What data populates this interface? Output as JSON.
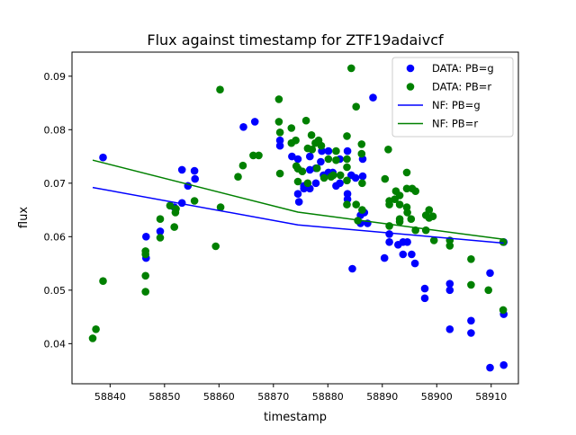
{
  "chart_data": {
    "type": "scatter",
    "title": "Flux against timestamp for ZTF19adaivcf",
    "xlabel": "timestamp",
    "ylabel": "flux",
    "xlim": [
      58833,
      58915
    ],
    "ylim": [
      0.0325,
      0.0945
    ],
    "xticks": [
      58840,
      58850,
      58860,
      58870,
      58880,
      58890,
      58900,
      58910
    ],
    "yticks": [
      0.04,
      0.05,
      0.06,
      0.07,
      0.08,
      0.09
    ],
    "grid": false,
    "legend_position": "top-right",
    "colors": {
      "data_g": "#0000ff",
      "data_r": "#008000",
      "nf_g": "#0000ff",
      "nf_r": "#008000"
    },
    "series": [
      {
        "name": "DATA: PB=g",
        "kind": "scatter",
        "color": "#0000ff",
        "points": [
          [
            58838.7,
            0.0748
          ],
          [
            58846.6,
            0.06
          ],
          [
            58846.6,
            0.056
          ],
          [
            58849.2,
            0.061
          ],
          [
            58851.8,
            0.0655
          ],
          [
            58853.2,
            0.0663
          ],
          [
            58853.2,
            0.0725
          ],
          [
            58854.3,
            0.0695
          ],
          [
            58855.5,
            0.0723
          ],
          [
            58855.6,
            0.0708
          ],
          [
            58864.5,
            0.0805
          ],
          [
            58866.6,
            0.0815
          ],
          [
            58871.2,
            0.078
          ],
          [
            58871.2,
            0.077
          ],
          [
            58873.4,
            0.075
          ],
          [
            58874.5,
            0.0745
          ],
          [
            58874.5,
            0.068
          ],
          [
            58874.7,
            0.0665
          ],
          [
            58875.6,
            0.0695
          ],
          [
            58875.6,
            0.069
          ],
          [
            58876.7,
            0.0725
          ],
          [
            58876.7,
            0.075
          ],
          [
            58876.7,
            0.069
          ],
          [
            58877.8,
            0.07
          ],
          [
            58877.8,
            0.0728
          ],
          [
            58878.7,
            0.074
          ],
          [
            58878.9,
            0.076
          ],
          [
            58879.2,
            0.0715
          ],
          [
            58880.1,
            0.072
          ],
          [
            58880.1,
            0.076
          ],
          [
            58880.9,
            0.072
          ],
          [
            58881.5,
            0.0695
          ],
          [
            58882.2,
            0.07
          ],
          [
            58882.2,
            0.0745
          ],
          [
            58883.6,
            0.068
          ],
          [
            58883.6,
            0.067
          ],
          [
            58883.6,
            0.076
          ],
          [
            58884.3,
            0.0715
          ],
          [
            58884.5,
            0.054
          ],
          [
            58885.1,
            0.071
          ],
          [
            58886.0,
            0.064
          ],
          [
            58886.0,
            0.0625
          ],
          [
            58886.4,
            0.0745
          ],
          [
            58886.4,
            0.0713
          ],
          [
            58886.7,
            0.0645
          ],
          [
            58887.3,
            0.0625
          ],
          [
            58888.3,
            0.086
          ],
          [
            58890.4,
            0.056
          ],
          [
            58891.3,
            0.059
          ],
          [
            58891.3,
            0.0605
          ],
          [
            58892.9,
            0.0585
          ],
          [
            58893.8,
            0.059
          ],
          [
            58893.8,
            0.0567
          ],
          [
            58894.6,
            0.059
          ],
          [
            58895.4,
            0.0567
          ],
          [
            58896.0,
            0.055
          ],
          [
            58897.8,
            0.0503
          ],
          [
            58897.8,
            0.0485
          ],
          [
            58902.4,
            0.0427
          ],
          [
            58902.4,
            0.05
          ],
          [
            58902.4,
            0.0512
          ],
          [
            58906.3,
            0.0443
          ],
          [
            58906.3,
            0.042
          ],
          [
            58909.8,
            0.0532
          ],
          [
            58909.8,
            0.0355
          ],
          [
            58912.3,
            0.059
          ],
          [
            58912.3,
            0.0455
          ],
          [
            58912.3,
            0.036
          ]
        ]
      },
      {
        "name": "DATA: PB=r",
        "kind": "scatter",
        "color": "#008000",
        "points": [
          [
            58836.8,
            0.041
          ],
          [
            58837.4,
            0.0427
          ],
          [
            58838.7,
            0.0517
          ],
          [
            58846.5,
            0.0573
          ],
          [
            58846.5,
            0.0567
          ],
          [
            58846.5,
            0.0527
          ],
          [
            58846.5,
            0.0497
          ],
          [
            58849.2,
            0.0633
          ],
          [
            58849.2,
            0.0598
          ],
          [
            58851.0,
            0.0658
          ],
          [
            58851.8,
            0.0618
          ],
          [
            58852.0,
            0.0645
          ],
          [
            58852.1,
            0.0652
          ],
          [
            58855.5,
            0.0667
          ],
          [
            58859.4,
            0.0582
          ],
          [
            58860.2,
            0.0875
          ],
          [
            58860.3,
            0.0655
          ],
          [
            58863.5,
            0.0712
          ],
          [
            58864.4,
            0.0733
          ],
          [
            58866.3,
            0.0752
          ],
          [
            58867.3,
            0.0752
          ],
          [
            58871.0,
            0.0857
          ],
          [
            58871.0,
            0.0815
          ],
          [
            58871.2,
            0.0795
          ],
          [
            58871.2,
            0.0718
          ],
          [
            58873.3,
            0.0803
          ],
          [
            58873.3,
            0.0775
          ],
          [
            58874.1,
            0.078
          ],
          [
            58874.2,
            0.0732
          ],
          [
            58874.5,
            0.0727
          ],
          [
            58874.5,
            0.0703
          ],
          [
            58875.3,
            0.0722
          ],
          [
            58876.0,
            0.0817
          ],
          [
            58876.3,
            0.0765
          ],
          [
            58876.3,
            0.07
          ],
          [
            58877.0,
            0.079
          ],
          [
            58877.1,
            0.0763
          ],
          [
            58877.7,
            0.0775
          ],
          [
            58878.0,
            0.0728
          ],
          [
            58878.3,
            0.078
          ],
          [
            58878.8,
            0.077
          ],
          [
            58879.3,
            0.071
          ],
          [
            58880.1,
            0.0745
          ],
          [
            58880.6,
            0.0712
          ],
          [
            58881.0,
            0.0715
          ],
          [
            58881.5,
            0.076
          ],
          [
            58881.5,
            0.0743
          ],
          [
            58882.3,
            0.0715
          ],
          [
            58883.5,
            0.0788
          ],
          [
            58883.5,
            0.0745
          ],
          [
            58883.5,
            0.073
          ],
          [
            58883.5,
            0.0705
          ],
          [
            58883.5,
            0.066
          ],
          [
            58884.3,
            0.0915
          ],
          [
            58885.2,
            0.0843
          ],
          [
            58885.2,
            0.066
          ],
          [
            58885.5,
            0.063
          ],
          [
            58886.2,
            0.0773
          ],
          [
            58886.2,
            0.0755
          ],
          [
            58886.3,
            0.065
          ],
          [
            58886.3,
            0.07
          ],
          [
            58890.5,
            0.0708
          ],
          [
            58891.1,
            0.0763
          ],
          [
            58891.3,
            0.0667
          ],
          [
            58891.3,
            0.066
          ],
          [
            58891.3,
            0.062
          ],
          [
            58892.3,
            0.067
          ],
          [
            58892.5,
            0.0685
          ],
          [
            58893.2,
            0.0677
          ],
          [
            58893.2,
            0.066
          ],
          [
            58893.2,
            0.0633
          ],
          [
            58893.2,
            0.0628
          ],
          [
            58894.5,
            0.072
          ],
          [
            58894.5,
            0.069
          ],
          [
            58894.5,
            0.0655
          ],
          [
            58894.6,
            0.0645
          ],
          [
            58895.3,
            0.0633
          ],
          [
            58895.5,
            0.069
          ],
          [
            58896.1,
            0.0685
          ],
          [
            58896.1,
            0.0612
          ],
          [
            58898.0,
            0.064
          ],
          [
            58898.0,
            0.0612
          ],
          [
            58898.6,
            0.065
          ],
          [
            58898.6,
            0.0635
          ],
          [
            58899.3,
            0.0638
          ],
          [
            58899.5,
            0.0593
          ],
          [
            58902.4,
            0.0593
          ],
          [
            58902.4,
            0.0583
          ],
          [
            58906.3,
            0.0558
          ],
          [
            58906.3,
            0.051
          ],
          [
            58909.5,
            0.05
          ],
          [
            58912.2,
            0.059
          ],
          [
            58912.2,
            0.0463
          ]
        ]
      },
      {
        "name": "NF: PB=g",
        "kind": "line",
        "color": "#0000ff",
        "points": [
          [
            58836.8,
            0.0692
          ],
          [
            58874.5,
            0.0622
          ],
          [
            58912.3,
            0.0588
          ]
        ]
      },
      {
        "name": "NF: PB=r",
        "kind": "line",
        "color": "#008000",
        "points": [
          [
            58836.8,
            0.0743
          ],
          [
            58874.5,
            0.0646
          ],
          [
            58912.3,
            0.0595
          ]
        ]
      }
    ]
  }
}
